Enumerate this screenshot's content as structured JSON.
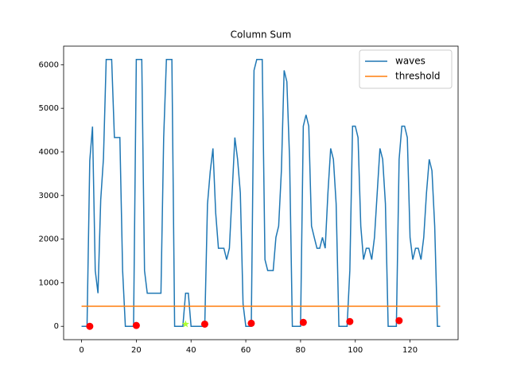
{
  "chart_data": {
    "type": "line",
    "title": "Column Sum",
    "xlim": [
      -6.55,
      137.55
    ],
    "ylim": [
      -306,
      6426
    ],
    "xticks": [
      0,
      20,
      40,
      60,
      80,
      100,
      120
    ],
    "yticks": [
      0,
      1000,
      2000,
      3000,
      4000,
      5000,
      6000
    ],
    "grid": false,
    "legend": "upper right",
    "series": [
      {
        "name": "waves",
        "color": "#1f77b4",
        "kind": "line",
        "x": [
          0,
          1,
          2,
          3,
          4,
          5,
          6,
          7,
          8,
          9,
          10,
          11,
          12,
          13,
          14,
          15,
          16,
          17,
          18,
          19,
          20,
          21,
          22,
          23,
          24,
          25,
          26,
          27,
          28,
          29,
          30,
          31,
          32,
          33,
          34,
          35,
          36,
          37,
          38,
          39,
          40,
          41,
          42,
          43,
          44,
          45,
          46,
          47,
          48,
          49,
          50,
          51,
          52,
          53,
          54,
          55,
          56,
          57,
          58,
          59,
          60,
          61,
          62,
          63,
          64,
          65,
          66,
          67,
          68,
          69,
          70,
          71,
          72,
          73,
          74,
          75,
          76,
          77,
          78,
          79,
          80,
          81,
          82,
          83,
          84,
          85,
          86,
          87,
          88,
          89,
          90,
          91,
          92,
          93,
          94,
          95,
          96,
          97,
          98,
          99,
          100,
          101,
          102,
          103,
          104,
          105,
          106,
          107,
          108,
          109,
          110,
          111,
          112,
          113,
          114,
          115,
          116,
          117,
          118,
          119,
          120,
          121,
          122,
          123,
          124,
          125,
          126,
          127,
          128,
          129,
          130,
          131
        ],
        "values": [
          0,
          0,
          0,
          3800,
          4580,
          1280,
          760,
          2900,
          3850,
          6120,
          6120,
          6120,
          4330,
          4330,
          4330,
          1280,
          0,
          0,
          0,
          0,
          6120,
          6120,
          6120,
          1280,
          760,
          760,
          760,
          760,
          760,
          760,
          4330,
          6120,
          6120,
          6120,
          0,
          0,
          0,
          0,
          760,
          760,
          0,
          0,
          0,
          0,
          0,
          0,
          2800,
          3550,
          4080,
          2600,
          1790,
          1790,
          1790,
          1530,
          1790,
          3060,
          4330,
          3830,
          3060,
          510,
          0,
          0,
          0,
          5870,
          6120,
          6120,
          6120,
          1530,
          1280,
          1280,
          1280,
          2040,
          2300,
          3570,
          5870,
          5610,
          3830,
          0,
          0,
          0,
          0,
          4590,
          4850,
          4590,
          2300,
          2040,
          1790,
          1790,
          2040,
          1790,
          3060,
          4080,
          3830,
          2810,
          0,
          0,
          0,
          0,
          1280,
          4590,
          4590,
          4330,
          2300,
          1530,
          1790,
          1790,
          1530,
          2040,
          3060,
          4080,
          3830,
          2810,
          0,
          0,
          0,
          0,
          3830,
          4590,
          4590,
          4330,
          2040,
          1530,
          1790,
          1790,
          1530,
          2040,
          3060,
          3830,
          3570,
          2300,
          0,
          0
        ]
      },
      {
        "name": "threshold",
        "color": "#ff7f0e",
        "kind": "line",
        "x": [
          0,
          131
        ],
        "values": [
          460,
          460
        ]
      },
      {
        "color": "red",
        "kind": "scatter",
        "marker": "o",
        "x": [
          3,
          20,
          45,
          62,
          81,
          98,
          116
        ],
        "values": [
          0,
          20,
          50,
          70,
          90,
          110,
          130
        ]
      },
      {
        "color": "greenyellow",
        "kind": "scatter",
        "marker": "*",
        "x": [
          38
        ],
        "values": [
          50
        ]
      }
    ]
  }
}
